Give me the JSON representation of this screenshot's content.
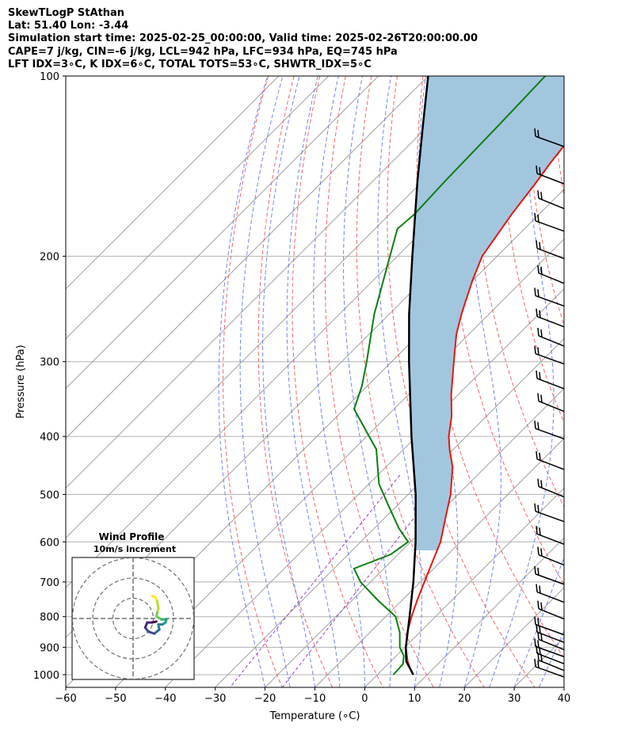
{
  "header": {
    "line1": "SkewTLogP StAthan",
    "line2": "Lat: 51.40   Lon: -3.44",
    "line3": "Simulation start time: 2025-02-25_00:00:00, Valid time: 2025-02-26T20:00:00.00",
    "line4": "CAPE=7 j/kg, CIN=-6 j/kg, LCL=942 hPa, LFC=934 hPa, EQ=745 hPa",
    "line5": "LFT IDX=3∘C, K IDX=6∘C, TOTAL TOTS=53∘C, SHWTR_IDX=5∘C"
  },
  "colors": {
    "temperature": "#e8160e",
    "dewpoint": "#0a7f12",
    "parcel": "#000000",
    "cape_fill": "#a3c6df",
    "dry_adiabat": "#f05858",
    "moist_adiabat": "#5a6ef0",
    "mixing_ratio": "#9a40c8",
    "isotherm": "#a0a0a0"
  },
  "chart_data": [
    {
      "type": "line",
      "xlabel": "Temperature (∘C)",
      "ylabel": "Pressure (hPa)",
      "xlim": [
        -60,
        40
      ],
      "ylim": [
        1050,
        100
      ],
      "y_scale": "log",
      "grid": true,
      "x_ticks": [
        "−60",
        "−50",
        "−40",
        "−30",
        "−20",
        "−10",
        "0",
        "10",
        "20",
        "30",
        "40"
      ],
      "y_ticks": [
        "100",
        "200",
        "300",
        "400",
        "500",
        "600",
        "700",
        "800",
        "900",
        "1000"
      ],
      "series": [
        {
          "role": "temperature",
          "points": [
            [
              1000,
              7.2
            ],
            [
              980,
              5.6
            ],
            [
              950,
              3.4
            ],
            [
              900,
              0.2
            ],
            [
              850,
              -2.5
            ],
            [
              800,
              -4.8
            ],
            [
              750,
              -7.0
            ],
            [
              700,
              -9.2
            ],
            [
              650,
              -11.5
            ],
            [
              600,
              -14.0
            ],
            [
              550,
              -17.6
            ],
            [
              500,
              -21.5
            ],
            [
              450,
              -26.6
            ],
            [
              420,
              -30.8
            ],
            [
              400,
              -33.5
            ],
            [
              370,
              -37.0
            ],
            [
              340,
              -41.5
            ],
            [
              300,
              -47.5
            ],
            [
              270,
              -52.5
            ],
            [
              250,
              -55.5
            ],
            [
              220,
              -60.0
            ],
            [
              200,
              -63.0
            ],
            [
              170,
              -65.5
            ],
            [
              150,
              -67.0
            ],
            [
              140,
              -68.0
            ],
            [
              130,
              -68.8
            ],
            [
              120,
              -70.0
            ],
            [
              110,
              -71.5
            ],
            [
              100,
              -73.0
            ]
          ]
        },
        {
          "role": "dewpoint",
          "points": [
            [
              1000,
              3.2
            ],
            [
              960,
              3.0
            ],
            [
              930,
              1.5
            ],
            [
              900,
              -1.0
            ],
            [
              850,
              -4.0
            ],
            [
              800,
              -8.0
            ],
            [
              750,
              -15.0
            ],
            [
              700,
              -22.0
            ],
            [
              665,
              -26.0
            ],
            [
              630,
              -21.5
            ],
            [
              600,
              -20.5
            ],
            [
              570,
              -25.0
            ],
            [
              520,
              -32.0
            ],
            [
              480,
              -38.0
            ],
            [
              420,
              -45.5
            ],
            [
              395,
              -50.5
            ],
            [
              360,
              -58.0
            ],
            [
              330,
              -61.0
            ],
            [
              300,
              -65.0
            ],
            [
              250,
              -73.0
            ],
            [
              200,
              -81.5
            ],
            [
              180,
              -85.5
            ],
            [
              170,
              -85.0
            ],
            [
              150,
              -85.5
            ],
            [
              120,
              -86.0
            ],
            [
              100,
              -86.5
            ]
          ]
        },
        {
          "role": "parcel",
          "points": [
            [
              1000,
              7.2
            ],
            [
              950,
              3.1
            ],
            [
              900,
              0.2
            ],
            [
              800,
              -5.2
            ],
            [
              700,
              -11.4
            ],
            [
              600,
              -19.0
            ],
            [
              500,
              -28.5
            ],
            [
              400,
              -41.0
            ],
            [
              300,
              -56.5
            ],
            [
              250,
              -66.0
            ],
            [
              200,
              -77.0
            ],
            [
              150,
              -91.0
            ],
            [
              120,
              -101.5
            ],
            [
              100,
              -110.0
            ]
          ]
        }
      ],
      "shaded_region": "cape"
    },
    {
      "type": "scatter",
      "title": "Wind Profile",
      "subtitle": "10m/s increment",
      "rings": [
        10,
        20,
        30
      ],
      "hodograph": [
        [
          9.5,
          11.0
        ],
        [
          11.0,
          10.5
        ],
        [
          12.0,
          8.5
        ],
        [
          12.5,
          5.0
        ],
        [
          12.0,
          3.0
        ],
        [
          11.5,
          1.0
        ],
        [
          14.0,
          -0.5
        ],
        [
          16.5,
          -0.5
        ],
        [
          16.0,
          -2.0
        ],
        [
          14.5,
          -3.0
        ],
        [
          12.5,
          -3.0
        ],
        [
          13.0,
          -5.5
        ],
        [
          10.5,
          -7.5
        ],
        [
          7.5,
          -6.5
        ],
        [
          6.0,
          -4.5
        ],
        [
          7.0,
          -2.0
        ],
        [
          9.5,
          -2.0
        ],
        [
          11.5,
          -1.5
        ]
      ]
    }
  ]
}
